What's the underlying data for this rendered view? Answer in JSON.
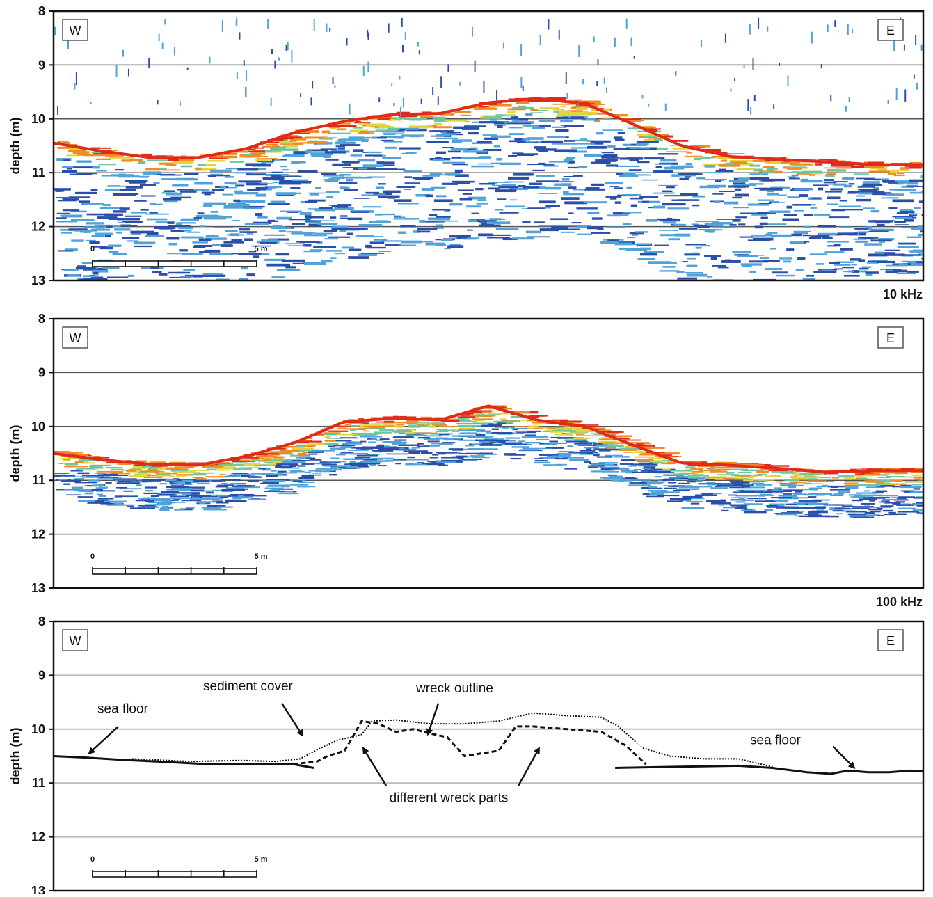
{
  "chart_data": [
    {
      "type": "heatmap",
      "label": "10 kHz",
      "ylabel": "depth (m)",
      "ylim": [
        13,
        8
      ],
      "y_ticks": [
        "8",
        "9",
        "10",
        "11",
        "12",
        "13"
      ],
      "grid_depths": [
        9,
        10,
        11,
        12
      ],
      "direction_left": "W",
      "direction_right": "E",
      "scale_bar": {
        "start": "0",
        "end": "5 m"
      },
      "colors": [
        "#2b4fa8",
        "#4fa3d9",
        "#6cc6a0",
        "#e0d63a",
        "#f08a24",
        "#e02a1a"
      ],
      "seafloor_depth": [
        10.45,
        10.6,
        10.72,
        10.72,
        10.55,
        10.25,
        10.05,
        9.92,
        9.9,
        9.7,
        9.62,
        9.72,
        10.1,
        10.5,
        10.7,
        10.75,
        10.8,
        10.85,
        10.85
      ]
    },
    {
      "type": "heatmap",
      "label": "100 kHz",
      "ylabel": "depth (m)",
      "ylim": [
        13,
        8
      ],
      "y_ticks": [
        "8",
        "9",
        "10",
        "11",
        "12",
        "13"
      ],
      "grid_depths": [
        9,
        10,
        11,
        12
      ],
      "direction_left": "W",
      "direction_right": "E",
      "scale_bar": {
        "start": "0",
        "end": "5 m"
      },
      "colors": [
        "#2b4fa8",
        "#4fa3d9",
        "#6cc6a0",
        "#e0d63a",
        "#f08a24",
        "#e02a1a"
      ],
      "seafloor_depth": [
        10.5,
        10.62,
        10.7,
        10.72,
        10.55,
        10.3,
        9.92,
        9.85,
        9.88,
        9.62,
        9.88,
        10.0,
        10.35,
        10.68,
        10.72,
        10.78,
        10.85,
        10.82,
        10.82
      ]
    },
    {
      "type": "line",
      "ylabel": "depth (m)",
      "ylim": [
        13,
        8
      ],
      "y_ticks": [
        "8",
        "9",
        "10",
        "11",
        "12",
        "13"
      ],
      "grid_depths": [
        9,
        10,
        11,
        12
      ],
      "direction_left": "W",
      "direction_right": "E",
      "scale_bar": {
        "start": "0",
        "end": "5 m"
      },
      "annotations": {
        "sea_floor_left": "sea floor",
        "sea_floor_right": "sea floor",
        "sediment_cover": "sediment cover",
        "wreck_outline": "wreck outline",
        "wreck_parts": "different wreck parts"
      },
      "series": [
        {
          "key": "sea-floor-west",
          "style": "solid",
          "x": [
            0,
            1,
            2,
            3,
            4.5,
            6,
            7,
            7.6
          ],
          "y": [
            10.5,
            10.53,
            10.57,
            10.6,
            10.65,
            10.65,
            10.65,
            10.72
          ]
        },
        {
          "key": "sea-floor-east",
          "style": "solid",
          "x": [
            16.4,
            18,
            20,
            21,
            22,
            22.7,
            23.2,
            23.8,
            24.4,
            25,
            25.4
          ],
          "y": [
            10.72,
            10.7,
            10.68,
            10.72,
            10.8,
            10.83,
            10.77,
            10.8,
            10.8,
            10.77,
            10.78
          ]
        },
        {
          "key": "sediment-cover",
          "style": "dotted",
          "x": [
            2.3,
            4,
            5.5,
            6.5,
            7.2,
            7.8,
            8.3,
            8.7,
            9,
            9.3,
            10,
            11,
            12,
            13,
            14,
            15,
            16,
            16.5,
            17.2,
            18,
            19,
            20,
            21
          ],
          "y": [
            10.55,
            10.6,
            10.58,
            10.6,
            10.55,
            10.35,
            10.2,
            10.15,
            10.1,
            9.85,
            9.83,
            9.9,
            9.9,
            9.85,
            9.7,
            9.75,
            9.78,
            9.95,
            10.35,
            10.5,
            10.55,
            10.55,
            10.7
          ]
        },
        {
          "key": "wreck-outline",
          "style": "dashed",
          "x": [
            7,
            7.7,
            8,
            8.5,
            9,
            9.5,
            10,
            10.5,
            11,
            11.5,
            12,
            12.5,
            13,
            13.5,
            14,
            15,
            16,
            16.7,
            17.3
          ],
          "y": [
            10.65,
            10.6,
            10.5,
            10.4,
            9.85,
            9.9,
            10.05,
            10.0,
            10.08,
            10.15,
            10.5,
            10.45,
            10.4,
            9.95,
            9.95,
            10.0,
            10.05,
            10.3,
            10.65
          ]
        }
      ]
    }
  ]
}
